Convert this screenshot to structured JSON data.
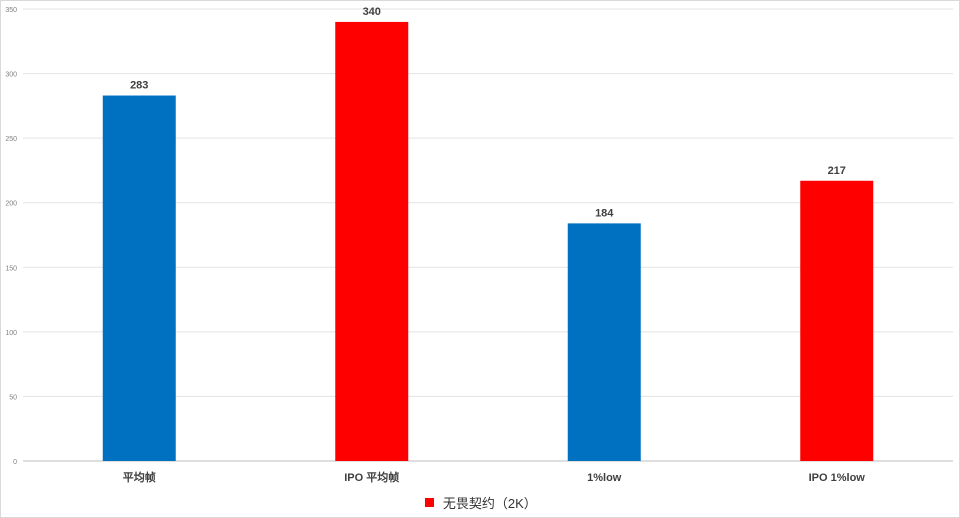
{
  "chart_data": {
    "type": "bar",
    "categories": [
      "平均帧",
      "IPO 平均帧",
      "1%low",
      "IPO 1%low"
    ],
    "values": [
      283,
      340,
      184,
      217
    ],
    "bar_colors": [
      "#0070C0",
      "#FF0000",
      "#0070C0",
      "#FF0000"
    ],
    "data_labels": [
      "283",
      "340",
      "184",
      "217"
    ],
    "y_ticks": [
      "0",
      "50",
      "100",
      "150",
      "200",
      "250",
      "300",
      "350"
    ],
    "ylim": [
      0,
      350
    ],
    "grid": true,
    "legend": {
      "position": "bottom",
      "entries": [
        {
          "label": "无畏契约（2K）",
          "color": "#FF0000"
        }
      ]
    }
  }
}
